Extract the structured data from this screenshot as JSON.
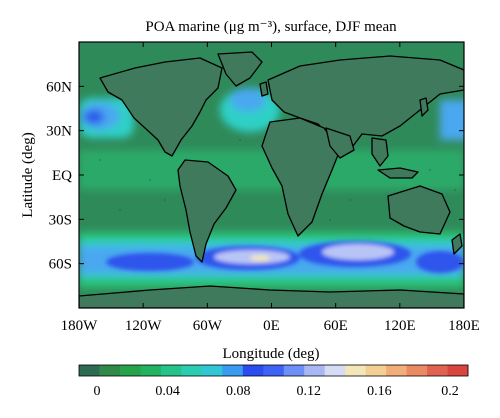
{
  "title": "POA marine (μg m⁻³), surface, DJF mean",
  "xlabel": "Longitude (deg)",
  "ylabel": "Latitude (deg)",
  "lon_ticks": [
    "180W",
    "120W",
    "60W",
    "0E",
    "60E",
    "120E",
    "180E"
  ],
  "lat_ticks": [
    "60N",
    "30N",
    "EQ",
    "30S",
    "60S"
  ],
  "lon_tick_values": [
    -180,
    -120,
    -60,
    0,
    60,
    120,
    180
  ],
  "lat_tick_values": [
    60,
    30,
    0,
    -30,
    -60
  ],
  "colorbar": {
    "tick_labels": [
      "0",
      "0.04",
      "0.08",
      "0.12",
      "0.16",
      "0.2"
    ],
    "tick_values": [
      0,
      0.04,
      0.08,
      0.12,
      0.16,
      0.2
    ],
    "range": [
      0,
      0.22
    ],
    "colors": [
      "#2e6b52",
      "#2f8a4a",
      "#26a24a",
      "#23b25f",
      "#25c38a",
      "#2bcdb2",
      "#30c6d6",
      "#3a9bef",
      "#2b4df0",
      "#3e62f5",
      "#6e8ff7",
      "#a9b7f5",
      "#d7dcf5",
      "#f3e6b8",
      "#f3cf95",
      "#f1ae78",
      "#ea8a63",
      "#e06351",
      "#d8473f"
    ]
  },
  "map": {
    "projection": "equirectangular",
    "lon_range": [
      -180,
      180
    ],
    "lat_range": [
      -90,
      90
    ],
    "colors": {
      "background": "#2f8a5a",
      "land": "#3f7a5c",
      "bright_green": "#2cc273",
      "cyan": "#2fd0c6",
      "light_blue": "#4aa8f0",
      "blue": "#2f55ec",
      "lavender": "#b9c4f6",
      "cream": "#f1e7b7",
      "coastline": "#000000"
    }
  }
}
